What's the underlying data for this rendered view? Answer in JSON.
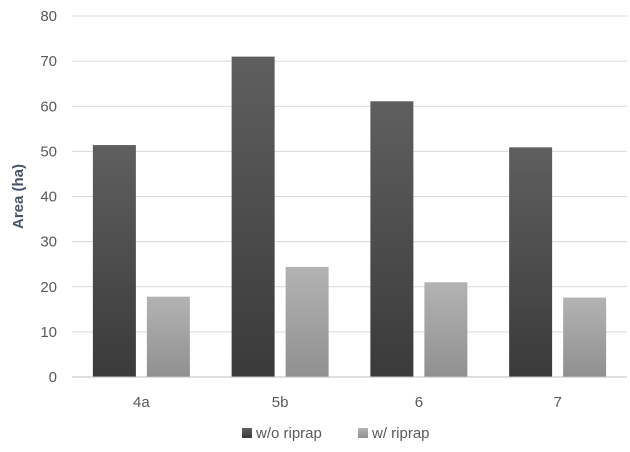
{
  "chart_data": {
    "type": "bar",
    "title": "",
    "xlabel": "",
    "ylabel": "Area (ha)",
    "categories": [
      "4a",
      "5b",
      "6",
      "7"
    ],
    "ylim": [
      0,
      80
    ],
    "yticks": [
      0,
      10,
      20,
      30,
      40,
      50,
      60,
      70,
      80
    ],
    "grid": true,
    "legend_position": "bottom",
    "series": [
      {
        "name": "w/o riprap",
        "values": [
          51.4,
          71.0,
          61.1,
          50.9
        ],
        "color_top": "#5f5f5f",
        "color_bottom": "#3a3a3a"
      },
      {
        "name": "w/ riprap",
        "values": [
          17.8,
          24.4,
          21.0,
          17.6
        ],
        "color_top": "#b3b3b3",
        "color_bottom": "#909090"
      }
    ]
  }
}
